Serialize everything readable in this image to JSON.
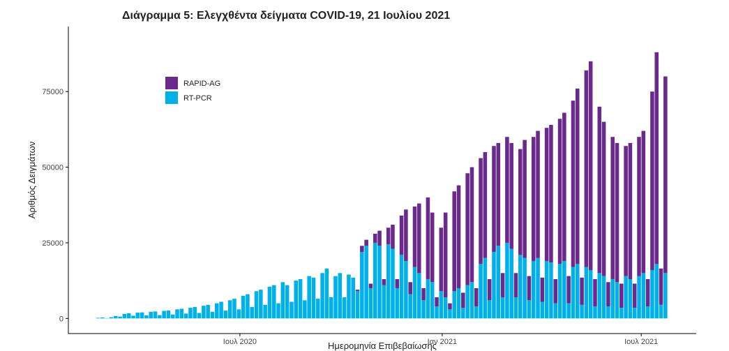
{
  "chart_data": {
    "type": "bar",
    "stacked": true,
    "title": "Διάγραμμα 5: Ελεγχθέντα δείγματα COVID-19, 21 Ιουλίου 2021",
    "x_label": "Ημερομηνία Επιβεβαίωσης",
    "y_label": "Αριθμός Δειγμάτων",
    "x": [
      0,
      4,
      8,
      12,
      16,
      20,
      24,
      28,
      32,
      36,
      40,
      44,
      48,
      52,
      56,
      60,
      64,
      68,
      72,
      76,
      80,
      84,
      88,
      92,
      96,
      100,
      104,
      108,
      112,
      116,
      120,
      124,
      128,
      132,
      136,
      140,
      144,
      148,
      152,
      156,
      160,
      164,
      168,
      172,
      176,
      180,
      184,
      188,
      192,
      196,
      200,
      204,
      208,
      212,
      216,
      220,
      224,
      228,
      232,
      236,
      240,
      244,
      248,
      252,
      256,
      260,
      264,
      268,
      272,
      276,
      280,
      284,
      288,
      292,
      296,
      300,
      304,
      308,
      312,
      316,
      320,
      324,
      328,
      332,
      336,
      340,
      344,
      348,
      352,
      356,
      360,
      364,
      368,
      372,
      376,
      380,
      384,
      388,
      392,
      396,
      400,
      404,
      408,
      412,
      416,
      420,
      424,
      428,
      432,
      436,
      440,
      444,
      448,
      452,
      456,
      460,
      464,
      468,
      472,
      476,
      480,
      484,
      488,
      492,
      496,
      500,
      504,
      508,
      512,
      516
    ],
    "series": [
      {
        "name": "RT-PCR",
        "color": "#00b0e8",
        "values": [
          200,
          300,
          100,
          400,
          800,
          600,
          1500,
          1700,
          900,
          1900,
          2000,
          1000,
          2200,
          2300,
          1100,
          2500,
          2600,
          1300,
          3000,
          3200,
          1600,
          3500,
          3800,
          1800,
          4200,
          4500,
          2200,
          5000,
          5500,
          2600,
          6000,
          6500,
          3000,
          7500,
          8000,
          3800,
          9000,
          9500,
          4500,
          10500,
          11000,
          5000,
          12000,
          11000,
          5500,
          12500,
          13000,
          6000,
          14000,
          13500,
          6500,
          15000,
          16500,
          7000,
          14000,
          15000,
          7000,
          14500,
          13500,
          9000,
          22000,
          24000,
          10000,
          25000,
          24000,
          11000,
          24500,
          23000,
          10000,
          21000,
          19000,
          8000,
          17000,
          15000,
          6000,
          13000,
          12000,
          4000,
          9000,
          7000,
          3000,
          9000,
          10000,
          3500,
          11000,
          12000,
          4000,
          18000,
          20000,
          6000,
          22000,
          24000,
          7000,
          25000,
          23000,
          7000,
          21000,
          20000,
          6000,
          19000,
          20000,
          5500,
          19000,
          18500,
          5000,
          18000,
          19000,
          5000,
          17000,
          18000,
          4500,
          17000,
          16000,
          4000,
          15000,
          14000,
          4000,
          13000,
          12000,
          3500,
          14000,
          13000,
          3500,
          14000,
          15000,
          4000,
          16000,
          18000,
          4500,
          15000
        ]
      },
      {
        "name": "RAPID-AG",
        "color": "#6a2a8c",
        "values": [
          0,
          0,
          0,
          0,
          0,
          0,
          0,
          0,
          0,
          0,
          0,
          0,
          0,
          0,
          0,
          0,
          0,
          0,
          0,
          0,
          0,
          0,
          0,
          0,
          0,
          0,
          0,
          0,
          0,
          0,
          0,
          0,
          0,
          0,
          0,
          0,
          0,
          0,
          0,
          0,
          0,
          0,
          0,
          0,
          0,
          0,
          0,
          0,
          0,
          0,
          0,
          0,
          0,
          0,
          0,
          0,
          0,
          0,
          0,
          500,
          2000,
          2000,
          1500,
          3000,
          5000,
          2000,
          5500,
          8000,
          3000,
          13000,
          17000,
          4000,
          20000,
          23000,
          4000,
          27000,
          23000,
          3000,
          21000,
          28000,
          2000,
          33000,
          34000,
          5000,
          37000,
          38000,
          6000,
          35000,
          35000,
          7000,
          35000,
          34000,
          8000,
          35000,
          35000,
          8000,
          35000,
          39000,
          8000,
          41000,
          42000,
          8000,
          44000,
          45500,
          8000,
          48000,
          49000,
          9000,
          55000,
          58000,
          9000,
          65000,
          69000,
          9000,
          55000,
          51000,
          8000,
          47000,
          46000,
          8000,
          43000,
          45000,
          8000,
          46000,
          47000,
          9000,
          59000,
          70000,
          12000,
          65000
        ]
      }
    ],
    "xlim": [
      -27,
      544
    ],
    "xticks": [
      {
        "value": 129,
        "label": "Ιουλ 2020"
      },
      {
        "value": 313,
        "label": "Ιαν 2021"
      },
      {
        "value": 494,
        "label": "Ιουλ 2021"
      }
    ],
    "ylim": [
      -5000,
      96500
    ],
    "yticks": [
      0,
      25000,
      50000,
      75000
    ],
    "grid": false,
    "legend": "top-left"
  }
}
